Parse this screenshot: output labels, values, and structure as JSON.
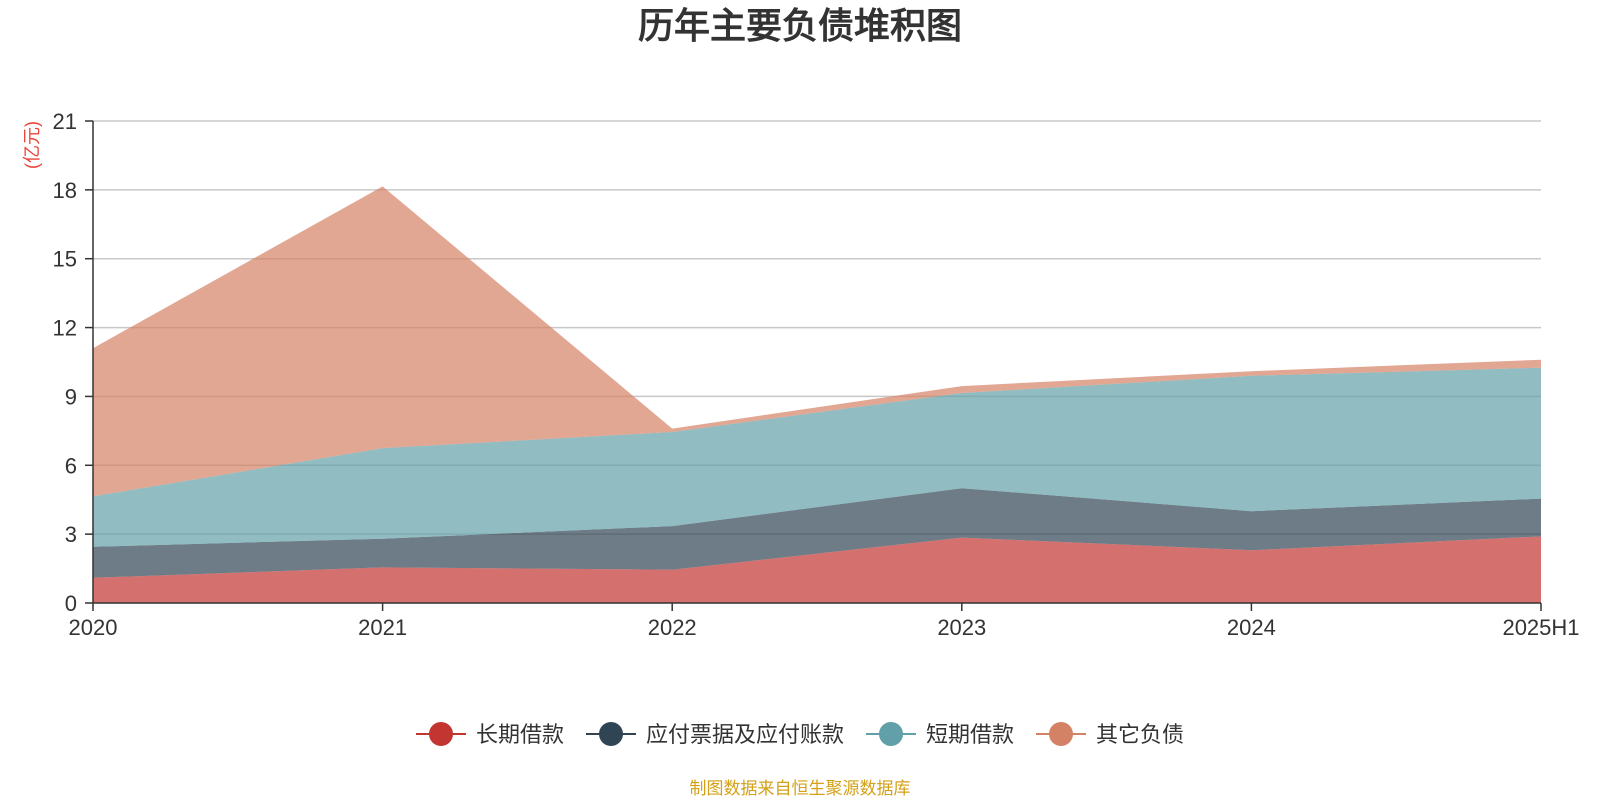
{
  "chart_data": {
    "type": "area",
    "stacked": true,
    "title": "历年主要负债堆积图",
    "ylabel": "(亿元)",
    "xlabel": "",
    "categories": [
      "2020",
      "2021",
      "2022",
      "2023",
      "2024",
      "2025H1"
    ],
    "ylim": [
      0,
      21
    ],
    "yticks": [
      0,
      3,
      6,
      9,
      12,
      15,
      18,
      21
    ],
    "grid": true,
    "legend_position": "bottom",
    "series": [
      {
        "name": "长期借款",
        "color": "#c23531",
        "values": [
          1.1,
          1.55,
          1.45,
          2.85,
          2.3,
          2.9
        ]
      },
      {
        "name": "应付票据及应付账款",
        "color": "#2f4554",
        "values": [
          1.35,
          1.25,
          1.9,
          2.15,
          1.7,
          1.65
        ]
      },
      {
        "name": "短期借款",
        "color": "#61a0a8",
        "values": [
          2.2,
          3.95,
          4.1,
          4.15,
          5.9,
          5.7
        ]
      },
      {
        "name": "其它负债",
        "color": "#d48265",
        "values": [
          6.45,
          11.4,
          0.15,
          0.3,
          0.2,
          0.35
        ]
      }
    ],
    "source": "制图数据来自恒生聚源数据库"
  }
}
